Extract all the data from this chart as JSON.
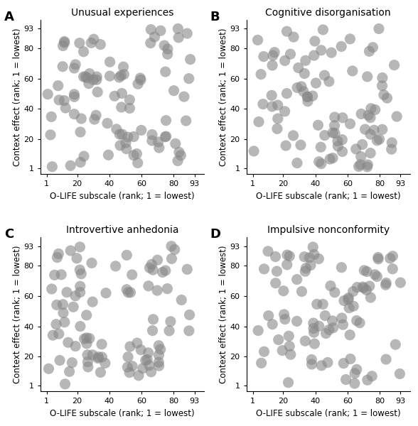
{
  "titles": [
    "Unusual experiences",
    "Cognitive disorganisation",
    "Introvertive anhedonia",
    "Impulsive nonconformity"
  ],
  "panel_labels": [
    "A",
    "B",
    "C",
    "D"
  ],
  "xlabel": "O-LIFE subscale (rank; 1 = lowest)",
  "ylabel": "Context effect (rank; 1 = lowest)",
  "xticks": [
    1,
    20,
    40,
    60,
    80,
    93
  ],
  "yticks": [
    1,
    20,
    40,
    60,
    80,
    93
  ],
  "xlim": [
    -3,
    99
  ],
  "ylim": [
    -3,
    99
  ],
  "n_points": 93,
  "marker_color": "#888888",
  "marker_alpha": 0.6,
  "marker_size": 120,
  "seeds": [
    42,
    7,
    13,
    99
  ],
  "background_color": "#ffffff",
  "title_fontsize": 10,
  "label_fontsize": 8.5,
  "tick_fontsize": 8,
  "panel_label_fontsize": 13
}
